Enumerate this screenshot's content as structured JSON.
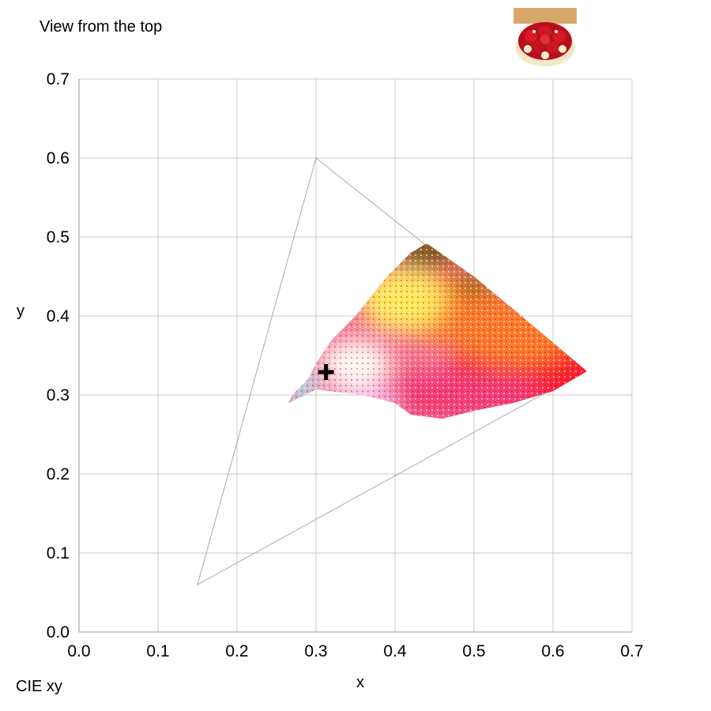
{
  "header": {
    "view_label": "View from the top",
    "thumbnail_icon": "strawberry-tart-thumbnail"
  },
  "footer": {
    "space_label": "CIE xy"
  },
  "chart_data": {
    "type": "scatter",
    "title": "",
    "xlabel": "x",
    "ylabel": "y",
    "xlim": [
      0.0,
      0.7
    ],
    "ylim": [
      0.0,
      0.7
    ],
    "x_ticks": [
      "0.0",
      "0.1",
      "0.2",
      "0.3",
      "0.4",
      "0.5",
      "0.6",
      "0.7"
    ],
    "y_ticks": [
      "0.0",
      "0.1",
      "0.2",
      "0.3",
      "0.4",
      "0.5",
      "0.6",
      "0.7"
    ],
    "grid": true,
    "gamut_triangle": [
      {
        "x": 0.64,
        "y": 0.33
      },
      {
        "x": 0.3,
        "y": 0.6
      },
      {
        "x": 0.15,
        "y": 0.06
      }
    ],
    "white_point": {
      "x": 0.3127,
      "y": 0.329
    },
    "colors": {
      "gamut_line": "#aaaaaa",
      "grid": "#c8c8c8",
      "axis": "#999999",
      "red": "#ff1a2e",
      "orange": "#ff7a2a",
      "yellow": "#ffe85a",
      "olive": "#5c5000",
      "pink": "#f53d78",
      "light_pink": "#f7b8e6",
      "cyan": "#a8e4f5",
      "white": "#fff8f4"
    },
    "cloud_polygon": [
      {
        "x": 0.643,
        "y": 0.33
      },
      {
        "x": 0.6,
        "y": 0.305
      },
      {
        "x": 0.55,
        "y": 0.29
      },
      {
        "x": 0.5,
        "y": 0.28
      },
      {
        "x": 0.46,
        "y": 0.27
      },
      {
        "x": 0.42,
        "y": 0.275
      },
      {
        "x": 0.4,
        "y": 0.29
      },
      {
        "x": 0.36,
        "y": 0.3
      },
      {
        "x": 0.3,
        "y": 0.307
      },
      {
        "x": 0.265,
        "y": 0.29
      },
      {
        "x": 0.27,
        "y": 0.3
      },
      {
        "x": 0.29,
        "y": 0.32
      },
      {
        "x": 0.3,
        "y": 0.34
      },
      {
        "x": 0.32,
        "y": 0.37
      },
      {
        "x": 0.35,
        "y": 0.4
      },
      {
        "x": 0.39,
        "y": 0.45
      },
      {
        "x": 0.42,
        "y": 0.48
      },
      {
        "x": 0.44,
        "y": 0.492
      },
      {
        "x": 0.5,
        "y": 0.45
      },
      {
        "x": 0.56,
        "y": 0.4
      },
      {
        "x": 0.643,
        "y": 0.33
      }
    ]
  }
}
